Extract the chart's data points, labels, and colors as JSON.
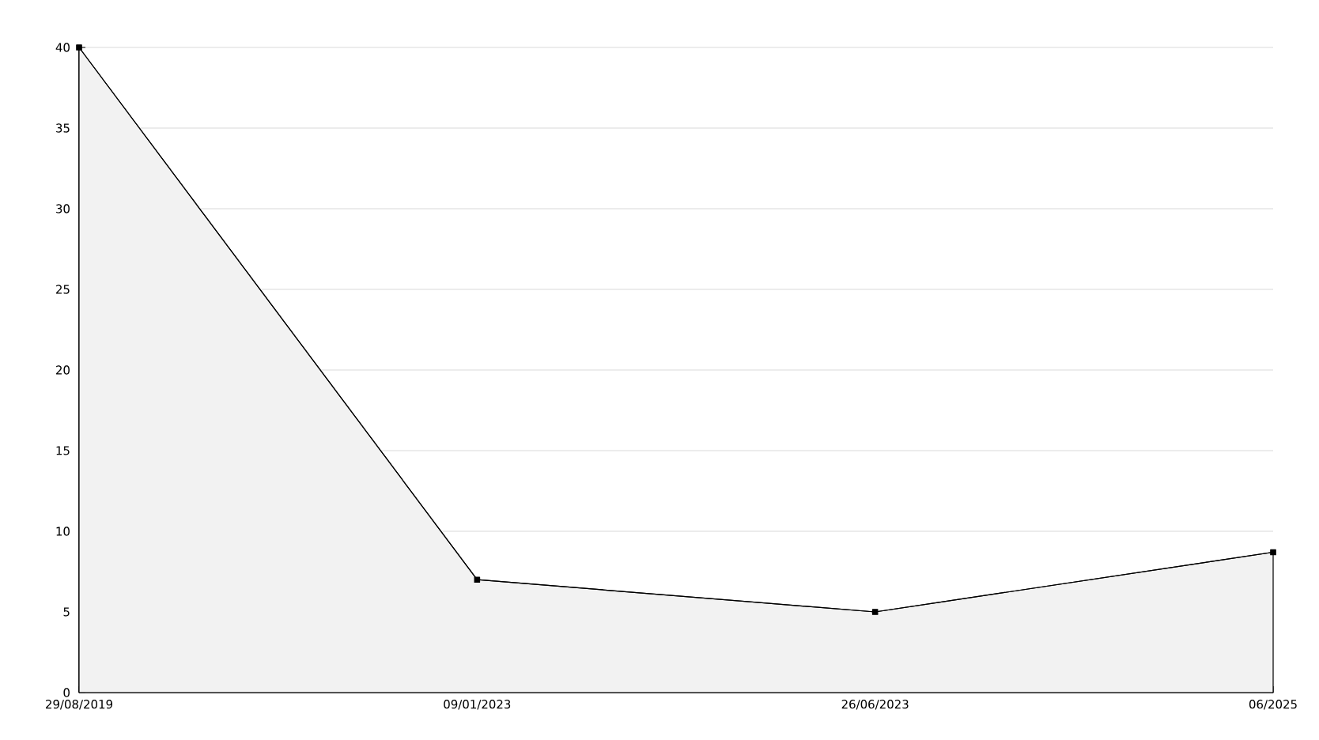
{
  "chart_data": {
    "type": "area",
    "categories": [
      "29/08/2019",
      "09/01/2023",
      "26/06/2023",
      "06/2025"
    ],
    "values": [
      40,
      7,
      5,
      8.7
    ],
    "color": "#000000",
    "ylim": [
      0,
      40
    ],
    "yticks": [
      0,
      5,
      10,
      15,
      20,
      25,
      30,
      35,
      40
    ],
    "grid": "y",
    "marker": "square",
    "line_style": "solid"
  }
}
